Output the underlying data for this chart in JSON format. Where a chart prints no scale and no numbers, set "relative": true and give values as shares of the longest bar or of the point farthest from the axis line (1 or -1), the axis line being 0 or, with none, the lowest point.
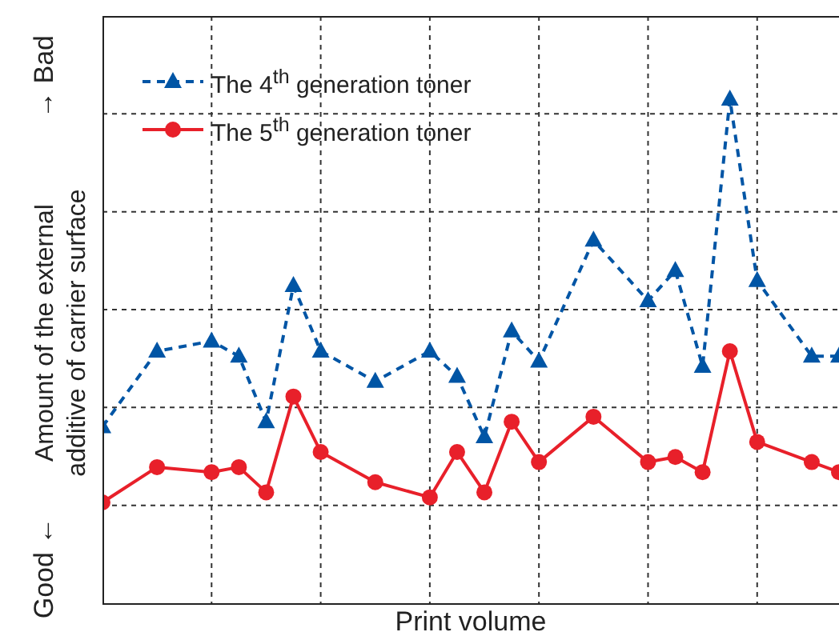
{
  "chart_data": {
    "type": "line",
    "relative": true,
    "xlabel": "Print volume",
    "ylabel": "Amount of the external additive of carrier surface",
    "annotations": [
      "Good ←",
      "→ Bad"
    ],
    "grid": true,
    "legend": "top left",
    "categories": [
      null,
      null,
      null,
      null,
      null,
      null,
      null,
      null,
      null,
      null,
      null,
      null,
      null,
      null,
      null,
      null,
      null,
      null,
      null,
      null,
      null,
      null,
      null,
      null,
      null,
      null,
      null,
      null
    ],
    "series": [
      {
        "name": "The 4$^{th}$ generation toner",
        "color": "#0055a5",
        "line_style": "dashed",
        "marker": "triangle",
        "values": [
          0.35,
          null,
          0.5,
          null,
          0.52,
          0.49,
          0.36,
          0.63,
          0.5,
          null,
          0.44,
          null,
          0.5,
          0.45,
          0.33,
          0.54,
          0.48,
          null,
          0.72,
          null,
          0.6,
          0.66,
          0.47,
          1,
          0.64,
          null,
          0.49,
          0.49
        ]
      },
      {
        "name": "The 5$^{th}$ generation toner",
        "color": "#e8202a",
        "line_style": "solid",
        "marker": "circle",
        "values": [
          0.2,
          null,
          0.27,
          null,
          0.26,
          0.27,
          0.22,
          0.41,
          0.3,
          null,
          0.24,
          null,
          0.21,
          0.3,
          0.22,
          0.36,
          0.28,
          null,
          0.37,
          null,
          0.28,
          0.29,
          0.26,
          0.5,
          0.32,
          null,
          0.28,
          0.26
        ]
      }
    ]
  }
}
